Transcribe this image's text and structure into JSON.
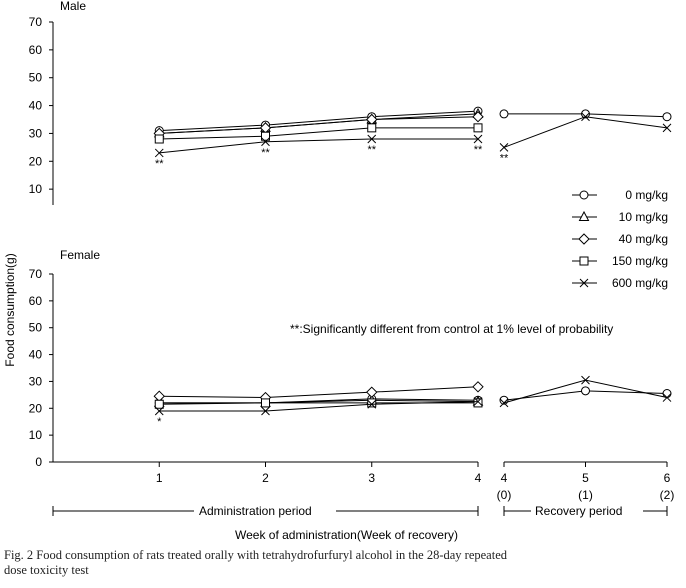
{
  "chart_data": [
    {
      "type": "line",
      "title": "Male",
      "ylabel": "Food consumption(g)",
      "ylim": [
        0,
        70
      ],
      "yticks": [
        10,
        20,
        30,
        40,
        50,
        60,
        70
      ],
      "x_admin": [
        1,
        2,
        3,
        4
      ],
      "x_recovery": [
        4,
        5,
        6
      ],
      "series": [
        {
          "name": "0 mg/kg",
          "marker": "circle",
          "admin": [
            31,
            33,
            36,
            38
          ],
          "recovery": [
            37,
            37,
            36
          ]
        },
        {
          "name": "10 mg/kg",
          "marker": "triangle",
          "admin": [
            30,
            32,
            35,
            37
          ],
          "recovery": []
        },
        {
          "name": "40 mg/kg",
          "marker": "diamond",
          "admin": [
            30,
            32,
            35,
            36
          ],
          "recovery": []
        },
        {
          "name": "150 mg/kg",
          "marker": "square",
          "admin": [
            28,
            29,
            32,
            32
          ],
          "recovery": []
        },
        {
          "name": "600 mg/kg",
          "marker": "x",
          "admin": [
            23,
            27,
            28,
            28
          ],
          "recovery": [
            25,
            36,
            32
          ]
        }
      ],
      "annotations": {
        "admin": [
          "**",
          "**",
          "**",
          "**"
        ],
        "recovery": [
          "**",
          "",
          ""
        ]
      }
    },
    {
      "type": "line",
      "title": "Female",
      "ylim": [
        0,
        70
      ],
      "yticks": [
        0,
        10,
        20,
        30,
        40,
        50,
        60,
        70
      ],
      "x_admin": [
        1,
        2,
        3,
        4
      ],
      "x_recovery": [
        4,
        5,
        6
      ],
      "series": [
        {
          "name": "0 mg/kg",
          "marker": "circle",
          "admin": [
            22,
            22,
            23.5,
            23
          ],
          "recovery": [
            23,
            26.5,
            25.5
          ]
        },
        {
          "name": "10 mg/kg",
          "marker": "triangle",
          "admin": [
            22,
            22,
            23,
            22.5
          ],
          "recovery": []
        },
        {
          "name": "40 mg/kg",
          "marker": "diamond",
          "admin": [
            24.5,
            24,
            26,
            28
          ],
          "recovery": []
        },
        {
          "name": "150 mg/kg",
          "marker": "square",
          "admin": [
            21.5,
            22,
            22,
            22
          ],
          "recovery": []
        },
        {
          "name": "600 mg/kg",
          "marker": "x",
          "admin": [
            19,
            19,
            21.5,
            22.5
          ],
          "recovery": [
            22,
            30.5,
            24
          ]
        }
      ],
      "annotations": {
        "admin": [
          "*",
          "",
          "",
          ""
        ],
        "recovery": [
          "",
          "",
          ""
        ]
      }
    }
  ],
  "legend": [
    "0 mg/kg",
    "10 mg/kg",
    "40 mg/kg",
    "150 mg/kg",
    "600 mg/kg"
  ],
  "significance_note": "**:Significantly different from control at 1% level of probability",
  "x_tick_labels": {
    "admin": [
      "1",
      "2",
      "3",
      "4"
    ],
    "recovery": [
      "4",
      "5",
      "6"
    ],
    "recovery_sub": [
      "(0)",
      "(1)",
      "(2)"
    ]
  },
  "admin_period_label": "Administration period",
  "recovery_period_label": "Recovery period",
  "xlabel": "Week of administration(Week of recovery)",
  "caption_line1": "Fig. 2  Food consumption of rats treated orally with tetrahydrofurfuryl alcohol in the 28-day repeated",
  "caption_line2": "dose toxicity test"
}
